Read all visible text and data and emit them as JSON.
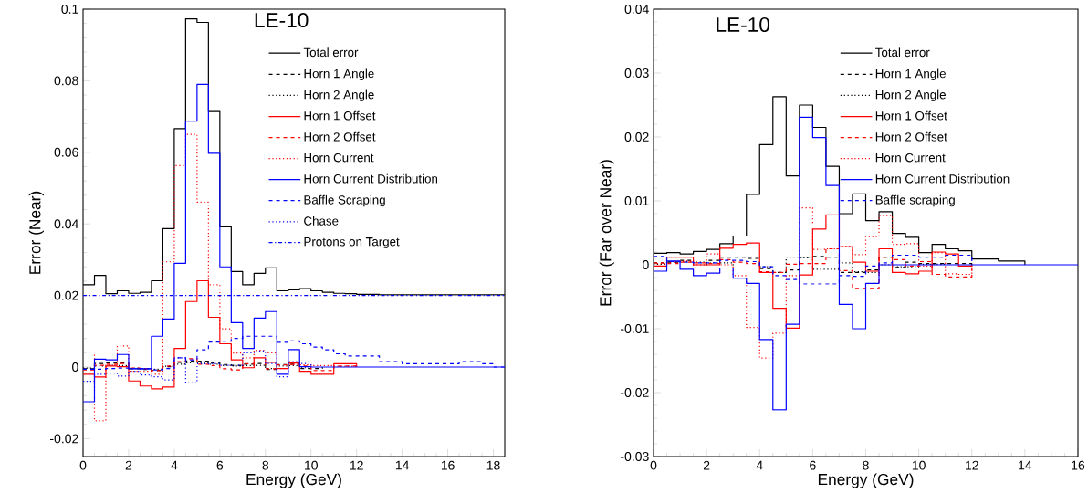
{
  "chart_data": [
    {
      "type": "step",
      "title": "LE-10",
      "xlabel": "Energy (GeV)",
      "ylabel": "Error (Near)",
      "xlim": [
        0,
        18.5
      ],
      "ylim": [
        -0.025,
        0.1
      ],
      "xticks": [
        0,
        2,
        4,
        6,
        8,
        10,
        12,
        14,
        16,
        18
      ],
      "yticks": [
        -0.02,
        0,
        0.02,
        0.04,
        0.06,
        0.08,
        0.1
      ],
      "legend": "top right",
      "x": [
        0,
        0.5,
        1,
        1.5,
        2,
        2.5,
        3,
        3.5,
        4,
        4.5,
        5,
        5.5,
        6,
        6.5,
        7,
        7.5,
        8,
        8.5,
        9,
        9.5,
        10,
        10.5,
        11,
        11.5,
        12,
        12.5,
        13,
        13.5,
        14,
        14.5,
        15,
        15.5,
        16,
        16.5,
        17,
        17.5,
        18,
        18.5
      ],
      "series": [
        {
          "name": "Total error",
          "color": "#000000",
          "line_style": "solid",
          "values": [
            0.023,
            0.0256,
            0.0205,
            0.0213,
            0.0206,
            0.0209,
            0.0241,
            0.0387,
            0.0666,
            0.0973,
            0.0963,
            0.0714,
            0.0392,
            0.0267,
            0.023,
            0.0262,
            0.0277,
            0.0213,
            0.0216,
            0.0219,
            0.0213,
            0.0209,
            0.0206,
            0.0205,
            0.0203,
            0.0203,
            0.0202,
            0.0202,
            0.0202,
            0.0202,
            0.0202,
            0.0202,
            0.0202,
            0.0202,
            0.0202,
            0.0202,
            0.0202,
            0.0202
          ]
        },
        {
          "name": "Horn 1 Angle",
          "color": "#000000",
          "line_style": "dashed",
          "values": [
            -0.0005,
            0.001,
            0.0012,
            0.0012,
            -0.0005,
            -0.0007,
            -0.001,
            0.0001,
            0.0013,
            0.0017,
            0.0016,
            0.0012,
            0.0007,
            0.0005,
            0.0008,
            0.001,
            -0.0007,
            0.0007,
            0.0008,
            -0.0004,
            -0.0004,
            0,
            null,
            null,
            null,
            null,
            null,
            null,
            null,
            null,
            null,
            null,
            null,
            null,
            null,
            null,
            null,
            null
          ]
        },
        {
          "name": "Horn 2 Angle",
          "color": "#000000",
          "line_style": "dotted",
          "values": [
            -0.0003,
            0.0003,
            0.0005,
            0.0004,
            -0.0003,
            -0.0004,
            -0.0006,
            0.0002,
            0.0008,
            0.0012,
            0.0012,
            0.0008,
            0.0005,
            0.0003,
            0.0004,
            0.0005,
            -0.0004,
            0.0003,
            0.0004,
            -0.0002,
            0,
            null,
            null,
            null,
            null,
            null,
            null,
            null,
            null,
            null,
            null,
            null,
            null,
            null,
            null,
            null,
            null,
            null
          ]
        },
        {
          "name": "Horn 1 Offset",
          "color": "#ff0000",
          "line_style": "solid",
          "values": [
            -0.002,
            -0.0028,
            0.0003,
            0.0001,
            -0.0039,
            -0.0053,
            -0.0061,
            -0.0056,
            0.0052,
            0.0183,
            0.0241,
            0.0139,
            0.0065,
            0.002,
            -0.0002,
            0.0026,
            0.0013,
            -0.0004,
            0.0011,
            -0.0012,
            -0.002,
            -0.002,
            0.0009,
            0.0009,
            0,
            null,
            null,
            null,
            null,
            null,
            null,
            null,
            null,
            null,
            null,
            null,
            null,
            null
          ]
        },
        {
          "name": "Horn 2 Offset",
          "color": "#ff0000",
          "line_style": "dashed",
          "values": [
            -0.0008,
            0.0005,
            0.0008,
            0.001,
            -0.0003,
            -0.0005,
            -0.001,
            0.0003,
            0.0015,
            0.0023,
            0.0008,
            0.0004,
            -0.0005,
            -0.0008,
            0.0009,
            0.0014,
            -0.0005,
            0.0006,
            0.0007,
            0.0003,
            -0.001,
            -0.001,
            0.0003,
            0.0003,
            0,
            null,
            null,
            null,
            null,
            null,
            null,
            null,
            null,
            null,
            null,
            null,
            null,
            null
          ]
        },
        {
          "name": "Horn Current",
          "color": "#ff0000",
          "line_style": "dotted",
          "values": [
            0.0042,
            -0.015,
            0.0005,
            0.0059,
            -0.0012,
            -0.0012,
            -0.002,
            0.0294,
            0.0563,
            0.065,
            0.0461,
            0.023,
            0.0107,
            0.0039,
            0.0026,
            0.0047,
            0.004,
            -0.0004,
            0.0008,
            0.0006,
            0.0004,
            0.0004,
            0.0002,
            0.0002,
            0,
            null,
            null,
            null,
            null,
            null,
            null,
            null,
            null,
            null,
            null,
            null,
            null,
            null
          ]
        },
        {
          "name": "Horn Current Distribution",
          "color": "#0000ff",
          "line_style": "solid",
          "values": [
            -0.0097,
            0.0022,
            0.002,
            0.0035,
            -0.0005,
            -0.0005,
            0.0086,
            0.0134,
            0.029,
            0.0687,
            0.079,
            0.0597,
            0.028,
            0.0124,
            0.0052,
            0.0137,
            0.0155,
            -0.002,
            0.0049,
            0.0001,
            0,
            0,
            0,
            0,
            0,
            0,
            0,
            0,
            0,
            0,
            0,
            0,
            0,
            0,
            0,
            0,
            0,
            0
          ]
        },
        {
          "name": "Baffle Scraping",
          "color": "#0000ff",
          "line_style": "dashed",
          "values": [
            -0.0006,
            -0.0006,
            -0.0004,
            -0.0003,
            -0.0004,
            -0.0005,
            -0.0008,
            -0.0004,
            0.0026,
            0.002,
            0.0048,
            0.007,
            0.0072,
            0.008,
            0.0086,
            0.0086,
            0.0086,
            0.0069,
            0.0073,
            0.0065,
            0.0056,
            0.0048,
            0.0037,
            0.0031,
            0.0031,
            0.0031,
            0.0015,
            0.0015,
            0.0009,
            0.0009,
            0.0009,
            0.0009,
            0.0009,
            0.0015,
            0.0015,
            0.0009,
            0,
            0
          ]
        },
        {
          "name": "Chase",
          "color": "#0000ff",
          "line_style": "dotted",
          "values": [
            -0.004,
            -0.002,
            -0.0017,
            -0.0025,
            -0.0012,
            -0.0022,
            -0.0027,
            -0.0036,
            0.0026,
            -0.0044,
            0.0009,
            0.0009,
            0.0005,
            0.0005,
            0.004,
            0.0045,
            0.001,
            -0.0027,
            0.0015,
            0.001,
            0,
            null,
            null,
            null,
            null,
            null,
            null,
            null,
            null,
            null,
            null,
            null,
            null,
            null,
            null,
            null,
            null,
            null
          ]
        },
        {
          "name": "Protons on Target",
          "color": "#0000ff",
          "line_style": "dashdot",
          "values": [
            0.02,
            0.02,
            0.02,
            0.02,
            0.02,
            0.02,
            0.02,
            0.02,
            0.02,
            0.02,
            0.02,
            0.02,
            0.02,
            0.02,
            0.02,
            0.02,
            0.02,
            0.02,
            0.02,
            0.02,
            0.02,
            0.02,
            0.02,
            0.02,
            0.02,
            0.02,
            0.02,
            0.02,
            0.02,
            0.02,
            0.02,
            0.02,
            0.02,
            0.02,
            0.02,
            0.02,
            0.02,
            0.02
          ]
        }
      ]
    },
    {
      "type": "step",
      "title": "LE-10",
      "xlabel": "Energy (GeV)",
      "ylabel": "Error (Far over Near)",
      "xlim": [
        0,
        16
      ],
      "ylim": [
        -0.03,
        0.04
      ],
      "xticks": [
        0,
        2,
        4,
        6,
        8,
        10,
        12,
        14,
        16
      ],
      "yticks": [
        -0.03,
        -0.02,
        -0.01,
        0,
        0.01,
        0.02,
        0.03,
        0.04
      ],
      "legend": "top right",
      "x": [
        0,
        0.5,
        1,
        1.5,
        2,
        2.5,
        3,
        3.5,
        4,
        4.5,
        5,
        5.5,
        6,
        6.5,
        7,
        7.5,
        8,
        8.5,
        9,
        9.5,
        10,
        10.5,
        11,
        11.5,
        12,
        12.5,
        13,
        13.5,
        14,
        14.5,
        15,
        15.5,
        16
      ],
      "series": [
        {
          "name": "Total error",
          "color": "#000000",
          "line_style": "solid",
          "values": [
            0.0018,
            0.0019,
            0.0017,
            0.0021,
            0.0024,
            0.0033,
            0.0045,
            0.011,
            0.0188,
            0.0263,
            0.0139,
            0.025,
            0.0215,
            0.0154,
            0.008,
            0.0111,
            0.0069,
            0.0083,
            0.0049,
            0.0043,
            0.0019,
            0.0032,
            0.0025,
            0.0022,
            0.0009,
            0.0009,
            0.0006,
            0.0006,
            0,
            null,
            null,
            null,
            null
          ]
        },
        {
          "name": "Horn 1 Angle",
          "color": "#000000",
          "line_style": "dashed",
          "values": [
            0.0003,
            0.0004,
            0.0007,
            -0.0005,
            0.0007,
            0.0012,
            0.0012,
            0.001,
            -0.0006,
            -0.0012,
            -0.0008,
            0.0012,
            0.0013,
            0.0012,
            -0.0012,
            -0.0012,
            -0.0008,
            0.0012,
            -0.0004,
            0.0004,
            0.0002,
            0.0002,
            0.0002,
            0.0002,
            0,
            null,
            null,
            null,
            null,
            null,
            null,
            null,
            null
          ]
        },
        {
          "name": "Horn 2 Angle",
          "color": "#000000",
          "line_style": "dotted",
          "values": [
            0.0001,
            0.0005,
            0.0005,
            0.0004,
            0.0003,
            0.0003,
            -0.0005,
            -0.0005,
            -0.0003,
            -0.0005,
            0.0012,
            0.0011,
            -0.0007,
            -0.0007,
            0.0003,
            -0.0011,
            -0.0012,
            0,
            -0.0003,
            -0.0003,
            0.0001,
            0.0001,
            0,
            null,
            null,
            null,
            null,
            null,
            null,
            null,
            null,
            null,
            null
          ]
        },
        {
          "name": "Horn 1 Offset",
          "color": "#ff0000",
          "line_style": "solid",
          "values": [
            -0.0002,
            0.0012,
            0.0012,
            0,
            0,
            0.0026,
            0.0032,
            0.0034,
            -0.0012,
            -0.0068,
            -0.0099,
            -0.0016,
            0.0056,
            0.0078,
            0.0028,
            0.0004,
            -0.001,
            0.0025,
            -0.0012,
            -0.0014,
            -0.001,
            0.002,
            0.0017,
            -0.0002,
            0,
            null,
            null,
            null,
            null,
            null,
            null,
            null,
            null
          ]
        },
        {
          "name": "Horn 2 Offset",
          "color": "#ff0000",
          "line_style": "dashed",
          "values": [
            0.0003,
            0.0002,
            0.0004,
            0.0003,
            0.0002,
            0.0008,
            0.0004,
            0.0002,
            -0.0011,
            -0.0012,
            0.0001,
            0.0002,
            0.0002,
            0.0025,
            -0.0009,
            -0.0037,
            -0.0037,
            0.0012,
            0.0008,
            -0.0002,
            0.0005,
            -0.0015,
            -0.0019,
            -0.0019,
            0,
            null,
            null,
            null,
            null,
            null,
            null,
            null,
            null
          ]
        },
        {
          "name": "Horn Current",
          "color": "#ff0000",
          "line_style": "dotted",
          "values": [
            0.0002,
            0.0004,
            0.0006,
            0,
            0.0017,
            0,
            -0.0017,
            -0.0098,
            -0.0146,
            -0.0107,
            -0.0017,
            0.0089,
            0.0024,
            0.0025,
            0.0029,
            0.0016,
            0.0044,
            0.0077,
            0.0032,
            0.0033,
            -0.0002,
            0.0019,
            -0.0014,
            -0.0015,
            0,
            null,
            null,
            null,
            null,
            null,
            null,
            null,
            null
          ]
        },
        {
          "name": "Horn Current Distribution",
          "color": "#0000ff",
          "line_style": "solid",
          "values": [
            -0.001,
            0.0006,
            -0.0007,
            -0.0017,
            -0.0013,
            -0.0005,
            -0.0021,
            -0.0029,
            -0.0117,
            -0.0227,
            -0.0093,
            0.0231,
            0.0199,
            0.0124,
            -0.0062,
            -0.01,
            -0.0029,
            0,
            0,
            0,
            0,
            0,
            0,
            0,
            0,
            0,
            0,
            0,
            0,
            0,
            0,
            0,
            0
          ]
        },
        {
          "name": "Baffle scraping",
          "color": "#0000ff",
          "line_style": "dashed",
          "values": [
            0.0013,
            0.0005,
            0.0004,
            0.0003,
            0.0003,
            0.0007,
            0.0007,
            0.0005,
            -0.0003,
            -0.0017,
            -0.0023,
            -0.003,
            -0.003,
            -0.003,
            -0.0017,
            -0.0018,
            -0.0002,
            0.0003,
            0.0015,
            0.0015,
            0.0012,
            0.0012,
            0.0015,
            0.0015,
            0,
            null,
            null,
            null,
            null,
            null,
            null,
            null,
            null
          ]
        }
      ]
    }
  ]
}
